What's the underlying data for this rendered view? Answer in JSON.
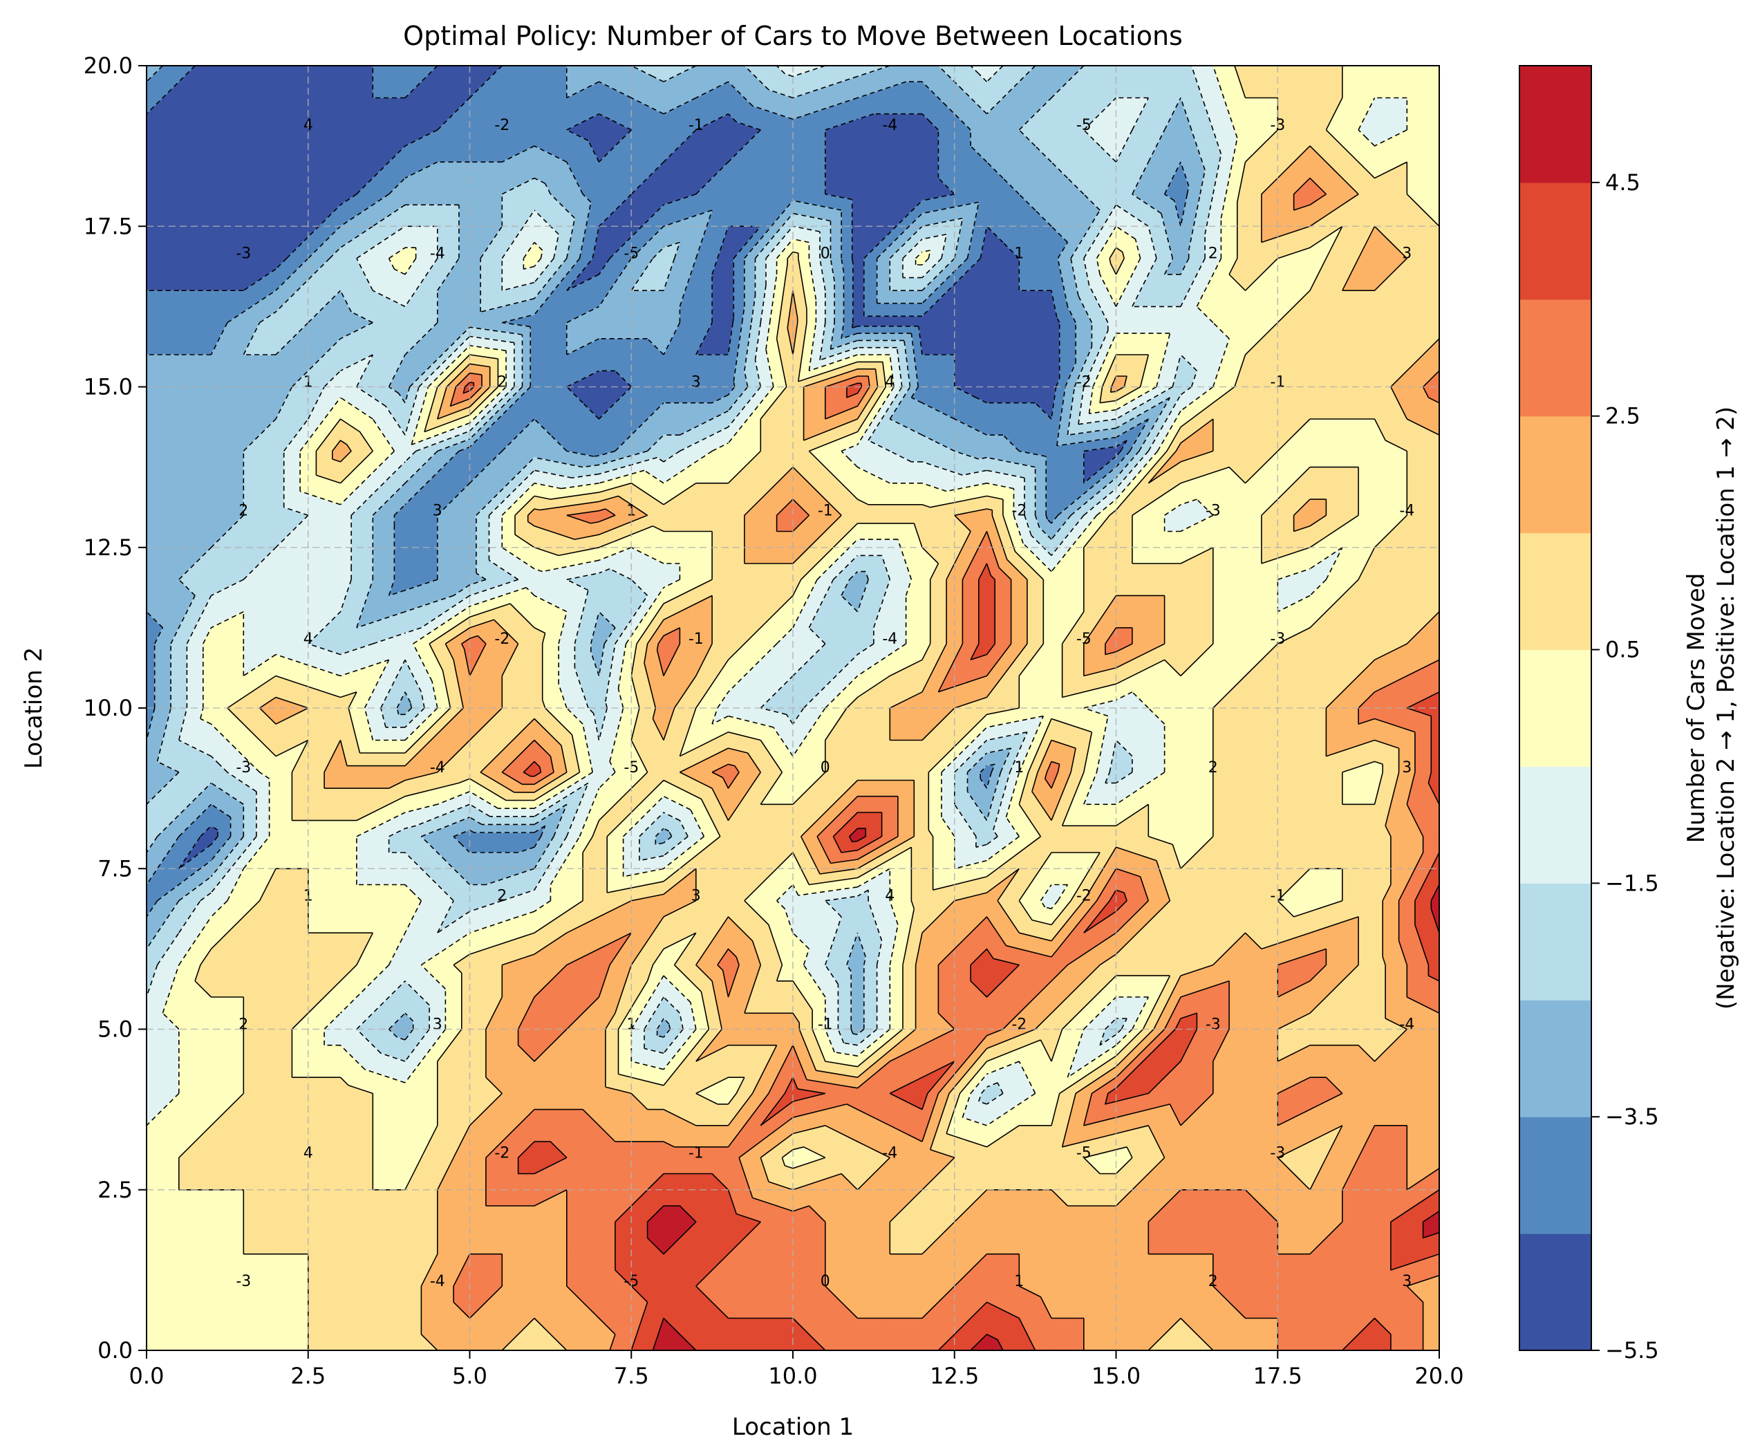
{
  "chart_data": {
    "type": "heatmap",
    "title": "Optimal Policy: Number of Cars to Move Between Locations",
    "xlabel": "Location 1",
    "ylabel": "Location 2",
    "xlim": [
      0,
      20
    ],
    "ylim": [
      0,
      20
    ],
    "x_ticks": [
      "0.0",
      "2.5",
      "5.0",
      "7.5",
      "10.0",
      "12.5",
      "15.0",
      "17.5",
      "20.0"
    ],
    "y_ticks": [
      "0.0",
      "2.5",
      "5.0",
      "7.5",
      "10.0",
      "12.5",
      "15.0",
      "17.5",
      "20.0"
    ],
    "grid": true,
    "colorbar": {
      "label_line1": "Number of Cars Moved",
      "label_line2": "(Negative: Location 2 → 1, Positive: Location 1 → 2)",
      "ticks": [
        "−5.5",
        "−3.5",
        "−1.5",
        "0.5",
        "2.5",
        "4.5"
      ],
      "levels": [
        -5.5,
        -4.5,
        -3.5,
        -2.5,
        -1.5,
        -0.5,
        0.5,
        1.5,
        2.5,
        3.5,
        4.5,
        5.5
      ],
      "colors": [
        "#3a52a2",
        "#5489c0",
        "#85b7d8",
        "#b7dcea",
        "#e1f2f3",
        "#fefebf",
        "#fee294",
        "#fdb365",
        "#f47e4e",
        "#e04830",
        "#c11b2a"
      ]
    },
    "grid_size": 21,
    "values": [
      [
        0,
        0,
        0,
        1,
        1,
        2,
        1,
        2,
        5,
        4,
        4,
        3,
        3,
        5,
        3,
        2,
        1,
        2,
        3,
        4,
        2
      ],
      [
        0,
        0,
        0,
        1,
        1,
        3,
        2,
        3,
        4,
        3,
        3,
        2,
        2,
        3,
        2,
        2,
        2,
        3,
        3,
        3,
        2
      ],
      [
        0,
        0,
        1,
        1,
        1,
        2,
        2,
        3,
        5,
        4,
        3,
        2,
        1,
        2,
        2,
        2,
        3,
        3,
        2,
        3,
        5
      ],
      [
        0,
        1,
        1,
        1,
        0,
        2,
        4,
        3,
        3,
        3,
        0,
        1,
        2,
        1,
        1,
        0,
        2,
        2,
        1,
        3,
        2
      ],
      [
        -1,
        0,
        1,
        1,
        0,
        1,
        2,
        2,
        1,
        0,
        4,
        3,
        4,
        -2,
        0,
        4,
        3,
        2,
        3,
        2,
        2
      ],
      [
        -1,
        0,
        1,
        -1,
        -3,
        1,
        3,
        2,
        -3,
        2,
        2,
        -3,
        2,
        3,
        1,
        -2,
        4,
        2,
        1,
        1,
        2
      ],
      [
        -2,
        1,
        1,
        1,
        -1,
        1,
        2,
        3,
        0,
        3,
        0,
        -3,
        2,
        4,
        3,
        1,
        1,
        2,
        3,
        1,
        4
      ],
      [
        -4,
        -1,
        1,
        0,
        0,
        -2,
        -1,
        1,
        2,
        1,
        -1,
        -2,
        1,
        2,
        -1,
        4,
        1,
        1,
        0,
        1,
        5
      ],
      [
        -2,
        -5,
        0,
        0,
        -2,
        -4,
        -4,
        1,
        -3,
        1,
        1,
        5,
        1,
        -2,
        1,
        1,
        0,
        1,
        1,
        1,
        3
      ],
      [
        -3,
        -2,
        0,
        2,
        2,
        1,
        4,
        -1,
        1,
        3,
        0,
        1,
        1,
        -4,
        3,
        -2,
        0,
        1,
        1,
        0,
        4
      ],
      [
        -4,
        0,
        2,
        1,
        -3,
        2,
        1,
        -2,
        2,
        -1,
        -2,
        1,
        2,
        1,
        0,
        -1,
        0,
        1,
        1,
        3,
        4
      ],
      [
        -4,
        0,
        -1,
        -2,
        -1,
        3,
        1,
        -3,
        3,
        1,
        -1,
        -2,
        0,
        4,
        0,
        3,
        1,
        0,
        1,
        1,
        2
      ],
      [
        -3,
        -2,
        -1,
        -1,
        -4,
        -3,
        -1,
        -2,
        -1,
        1,
        1,
        -3,
        0,
        4,
        0,
        1,
        1,
        0,
        -1,
        1,
        1
      ],
      [
        -3,
        -3,
        -2,
        -1,
        -4,
        -3,
        2,
        3,
        1,
        1,
        3,
        1,
        1,
        2,
        -4,
        1,
        -1,
        0,
        2,
        0,
        1
      ],
      [
        -3,
        -3,
        -2,
        2,
        -1,
        -4,
        -3,
        -4,
        -2,
        0,
        1,
        -1,
        -2,
        -3,
        -4,
        -5,
        2,
        1,
        0,
        0,
        1
      ],
      [
        -3,
        -3,
        -3,
        -1,
        -3,
        4,
        -4,
        -5,
        -4,
        -4,
        1,
        4,
        -4,
        -5,
        -5,
        2,
        -2,
        1,
        1,
        1,
        3
      ],
      [
        -4,
        -4,
        -2,
        -3,
        -2,
        -3,
        -4,
        -3,
        -3,
        -5,
        2,
        -5,
        -5,
        -5,
        -5,
        -1,
        -1,
        0,
        1,
        1,
        1
      ],
      [
        -5,
        -5,
        -5,
        -2,
        0,
        -3,
        0,
        -5,
        -2,
        -5,
        1,
        -5,
        0,
        -5,
        -4,
        1,
        -3,
        1,
        0,
        2,
        1
      ],
      [
        -5,
        -5,
        -5,
        -5,
        -3,
        -3,
        -2,
        -4,
        -5,
        -4,
        -4,
        -5,
        -5,
        -4,
        -3,
        -2,
        -4,
        1,
        3,
        1,
        0
      ],
      [
        -5,
        -5,
        -5,
        -5,
        -5,
        -4,
        -4,
        -5,
        -4,
        -5,
        -4,
        -5,
        -5,
        -3,
        -2,
        -1,
        -3,
        0,
        1,
        -1,
        0
      ],
      [
        -3,
        -5,
        -5,
        -5,
        -4,
        -5,
        -4,
        -3,
        -2,
        -3,
        -1,
        -2,
        -3,
        -1,
        -3,
        -2,
        -2,
        1,
        1,
        0,
        0
      ]
    ],
    "contour_labels": [
      "-3",
      "-4",
      "-5",
      "0",
      "1",
      "2",
      "3",
      "4",
      "-2",
      "-1",
      "-4",
      "-5",
      "-3",
      "2",
      "3",
      "1",
      "-1",
      "-2",
      "-3",
      "-4",
      "1",
      "2",
      "3",
      "4",
      "-2",
      "-1"
    ]
  }
}
